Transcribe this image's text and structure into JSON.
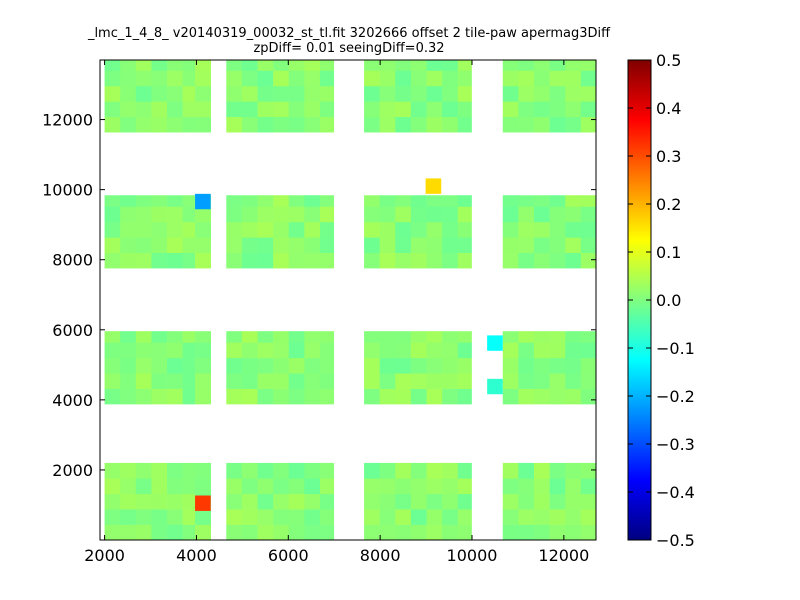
{
  "chart_data": {
    "type": "heatmap",
    "title": "_lmc_1_4_8_ v20140319_00032_st_tl.fit 3202666 offset 2 tile-paw apermag3Diff",
    "subtitle": "zpDiff= 0.01 seeingDiff=0.32",
    "xlabel": "",
    "ylabel": "",
    "xlim": [
      1900,
      12700
    ],
    "ylim": [
      0,
      13700
    ],
    "x_ticks": [
      2000,
      4000,
      6000,
      8000,
      10000,
      12000
    ],
    "x_tick_labels": [
      "2000",
      "4000",
      "6000",
      "8000",
      "10000",
      "12000"
    ],
    "y_ticks": [
      2000,
      4000,
      6000,
      8000,
      10000,
      12000
    ],
    "y_tick_labels": [
      "2000",
      "4000",
      "6000",
      "8000",
      "10000",
      "12000"
    ],
    "colorbar": {
      "colormap": "jet",
      "vmin": -0.5,
      "vmax": 0.5,
      "ticks": [
        -0.5,
        -0.4,
        -0.3,
        -0.2,
        -0.1,
        0.0,
        0.1,
        0.2,
        0.3,
        0.4,
        0.5
      ],
      "tick_labels": [
        "−0.5",
        "−0.4",
        "−0.3",
        "−0.2",
        "−0.1",
        "0.0",
        "0.1",
        "0.2",
        "0.3",
        "0.4",
        "0.5"
      ]
    },
    "cell_size": [
      340,
      440
    ],
    "column_groups": [
      {
        "x_start": 2000,
        "x_end": 3970
      },
      {
        "x_start": 3970,
        "x_end": 4310
      },
      {
        "x_start": 4650,
        "x_end": 6990
      },
      {
        "x_start": 7650,
        "x_end": 9990
      },
      {
        "x_start": 10670,
        "x_end": 12690
      }
    ],
    "row_bands": [
      {
        "y_start": 0,
        "y_end": 2200
      },
      {
        "y_start": 3880,
        "y_end": 5960
      },
      {
        "y_start": 7760,
        "y_end": 9840
      },
      {
        "y_start": 11640,
        "y_end": 13700
      }
    ],
    "base_value": 0.01,
    "outliers": [
      {
        "x": 4140,
        "y": 1050,
        "value": 0.32
      },
      {
        "x": 4140,
        "y": 9660,
        "value": -0.22
      },
      {
        "x": 9160,
        "y": 10100,
        "value": 0.16
      },
      {
        "x": 10500,
        "y": 5620,
        "value": -0.12
      },
      {
        "x": 10500,
        "y": 4380,
        "value": -0.08
      }
    ]
  }
}
